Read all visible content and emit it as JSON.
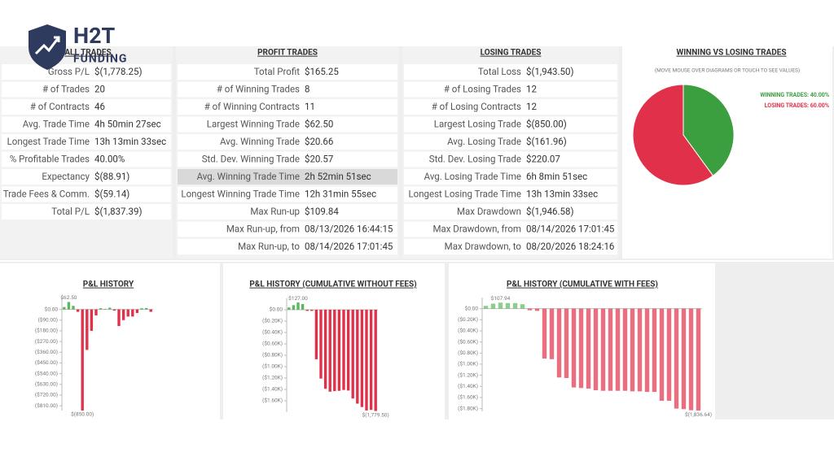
{
  "brand": {
    "name": "H2T",
    "sub": "FUNDING"
  },
  "panels": [
    {
      "title": "ALL TRADES",
      "rows": [
        [
          "Gross P/L",
          "$(1,778.25)"
        ],
        [
          "# of Trades",
          "20"
        ],
        [
          "# of Contracts",
          "46"
        ],
        [
          "Avg. Trade Time",
          "4h 50min 27sec"
        ],
        [
          "Longest Trade Time",
          "13h 13min 33sec"
        ],
        [
          "% Profitable Trades",
          "40.00%"
        ],
        [
          "Expectancy",
          "$(88.91)"
        ],
        [
          "Trade Fees & Comm.",
          "$(59.14)"
        ],
        [
          "Total P/L",
          "$(1,837.39)"
        ]
      ]
    },
    {
      "title": "PROFIT TRADES",
      "highlight": 6,
      "rows": [
        [
          "Total Profit",
          "$165.25"
        ],
        [
          "# of Winning Trades",
          "8"
        ],
        [
          "# of Winning Contracts",
          "11"
        ],
        [
          "Largest Winning Trade",
          "$62.50"
        ],
        [
          "Avg. Winning Trade",
          "$20.66"
        ],
        [
          "Std. Dev. Winning Trade",
          "$20.57"
        ],
        [
          "Avg. Winning Trade Time",
          "2h 52min 51sec"
        ],
        [
          "Longest Winning Trade Time",
          "12h 31min 55sec"
        ],
        [
          "Max Run-up",
          "$109.84"
        ],
        [
          "Max Run-up, from",
          "08/13/2026 16:44:15"
        ],
        [
          "Max Run-up, to",
          "08/14/2026 17:01:45"
        ]
      ]
    },
    {
      "title": "LOSING TRADES",
      "rows": [
        [
          "Total Loss",
          "$(1,943.50)"
        ],
        [
          "# of Losing Trades",
          "12"
        ],
        [
          "# of Losing Contracts",
          "12"
        ],
        [
          "Largest Losing Trade",
          "$(850.00)"
        ],
        [
          "Avg. Losing Trade",
          "$(161.96)"
        ],
        [
          "Std. Dev. Losing Trade",
          "$220.07"
        ],
        [
          "Avg. Losing Trade Time",
          "6h 8min 51sec"
        ],
        [
          "Longest Losing Trade Time",
          "13h 13min 33sec"
        ],
        [
          "Max Drawdown",
          "$(1,946.58)"
        ],
        [
          "Max Drawdown, from",
          "08/14/2026 17:01:45"
        ],
        [
          "Max Drawdown, to",
          "08/20/2026 18:24:16"
        ]
      ]
    }
  ],
  "pie": {
    "type": "pie",
    "title": "WINNING VS LOSING TRADES",
    "subtitle": "(MOVE MOUSE OVER DIAGRAMS OR TOUCH TO SEE VALUES)",
    "categories": [
      "WINNING TRADES",
      "LOSING TRADES"
    ],
    "values": [
      40,
      60
    ],
    "value_labels": [
      "WINNING TRADES: 40.00%",
      "LOSING TRADES: 60.00%"
    ],
    "colors": [
      "#3b9e3f",
      "#e1314a"
    ]
  },
  "charts": [
    {
      "type": "bar",
      "title": "P&L HISTORY",
      "max_label": "$62.50",
      "min_label": "$(850.00)",
      "ylim": [
        -850,
        100
      ],
      "yticks": [
        {
          "value": 0,
          "label": "$0.00"
        },
        {
          "value": -90,
          "label": "($90.00)"
        },
        {
          "value": -180,
          "label": "($180.00)"
        },
        {
          "value": -270,
          "label": "($270.00)"
        },
        {
          "value": -360,
          "label": "($360.00)"
        },
        {
          "value": -450,
          "label": "($450.00)"
        },
        {
          "value": -540,
          "label": "($540.00)"
        },
        {
          "value": -630,
          "label": "($630.00)"
        },
        {
          "value": -720,
          "label": "($720.00)"
        },
        {
          "value": -810,
          "label": "($810.00)"
        }
      ],
      "values": [
        20,
        62.5,
        30,
        -20,
        -850,
        -340,
        -180,
        -50,
        10,
        5,
        15,
        -10,
        -140,
        -90,
        -60,
        -60,
        -30,
        10,
        12,
        -20
      ]
    },
    {
      "type": "bar",
      "title": "P&L HISTORY (CUMULATIVE WITHOUT FEES)",
      "max_label": "$127.00",
      "min_label": "$(1,779.50)",
      "ylim": [
        -1800,
        200
      ],
      "yticks": [
        {
          "value": 0,
          "label": "$0.00"
        },
        {
          "value": -200,
          "label": "($0.20K)"
        },
        {
          "value": -400,
          "label": "($0.40K)"
        },
        {
          "value": -600,
          "label": "($0.60K)"
        },
        {
          "value": -800,
          "label": "($0.80K)"
        },
        {
          "value": -1000,
          "label": "($1.00K)"
        },
        {
          "value": -1200,
          "label": "($1.20K)"
        },
        {
          "value": -1400,
          "label": "($1.40K)"
        },
        {
          "value": -1600,
          "label": "($1.60K)"
        }
      ],
      "values": [
        40,
        80,
        127,
        100,
        -20,
        -20,
        -870,
        -1210,
        -1390,
        -1440,
        -1430,
        -1425,
        -1410,
        -1420,
        -1560,
        -1650,
        -1710,
        -1770,
        -1760,
        -1779.5
      ]
    },
    {
      "type": "bar",
      "title": "P&L HISTORY (CUMULATIVE WITH FEES)",
      "max_label": "$107.94",
      "min_label": "$(1,836.64)",
      "ylim": [
        -1850,
        200
      ],
      "yticks": [
        {
          "value": 0,
          "label": "$0.00"
        },
        {
          "value": -200,
          "label": "($0.20K)"
        },
        {
          "value": -400,
          "label": "($0.40K)"
        },
        {
          "value": -600,
          "label": "($0.60K)"
        },
        {
          "value": -800,
          "label": "($0.80K)"
        },
        {
          "value": -1000,
          "label": "($1.00K)"
        },
        {
          "value": -1200,
          "label": "($1.20K)"
        },
        {
          "value": -1400,
          "label": "($1.40K)"
        },
        {
          "value": -1600,
          "label": "($1.60K)"
        },
        {
          "value": -1800,
          "label": "($1.80K)"
        }
      ],
      "values": [
        50,
        90,
        107.94,
        100,
        100,
        80,
        -30,
        -40,
        -900,
        -910,
        -1240,
        -1250,
        -1420,
        -1430,
        -1440,
        -1470,
        -1480,
        -1480,
        -1480,
        -1480,
        -1490,
        -1490,
        -1500,
        -1500,
        -1660,
        -1660,
        -1800,
        -1810,
        -1830,
        -1836.64
      ]
    }
  ]
}
